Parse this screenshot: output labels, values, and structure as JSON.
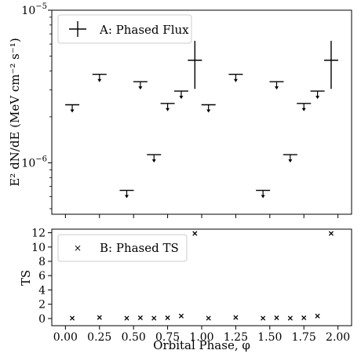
{
  "chart_data": [
    {
      "type": "scatter",
      "panel": "A",
      "ylabel": "E² dN/dE (MeV cm⁻² s⁻¹)",
      "yscale": "log",
      "ylim": [
        4.6e-07,
        1e-05
      ],
      "xlim": [
        -0.1,
        2.1
      ],
      "y_ticks": [
        {
          "value": 1e-05,
          "base": "10",
          "exp": "−5"
        },
        {
          "value": 1e-06,
          "base": "10",
          "exp": "−6"
        }
      ],
      "legend": {
        "label": "A: Phased Flux",
        "position": "top-left"
      },
      "grid": false,
      "upper_limits": [
        {
          "x": 0.05,
          "y": 2.4e-06
        },
        {
          "x": 0.25,
          "y": 3.8e-06
        },
        {
          "x": 0.45,
          "y": 6.6e-07
        },
        {
          "x": 0.55,
          "y": 3.4e-06
        },
        {
          "x": 0.65,
          "y": 1.13e-06
        },
        {
          "x": 0.75,
          "y": 2.45e-06
        },
        {
          "x": 0.85,
          "y": 2.95e-06
        },
        {
          "x": 1.05,
          "y": 2.4e-06
        },
        {
          "x": 1.25,
          "y": 3.8e-06
        },
        {
          "x": 1.45,
          "y": 6.6e-07
        },
        {
          "x": 1.55,
          "y": 3.4e-06
        },
        {
          "x": 1.65,
          "y": 1.13e-06
        },
        {
          "x": 1.75,
          "y": 2.45e-06
        },
        {
          "x": 1.85,
          "y": 2.95e-06
        }
      ],
      "detections": [
        {
          "x": 0.95,
          "y": 4.7e-06,
          "y_low": 3.05e-06,
          "y_high": 6.3e-06
        },
        {
          "x": 1.95,
          "y": 4.7e-06,
          "y_low": 3.05e-06,
          "y_high": 6.3e-06
        }
      ]
    },
    {
      "type": "scatter",
      "panel": "B",
      "ylabel": "TS",
      "xlabel": "Orbital Phase, φ",
      "xlim": [
        -0.1,
        2.1
      ],
      "ylim": [
        -1,
        12.5
      ],
      "x_ticks": [
        "0.00",
        "0.25",
        "0.50",
        "0.75",
        "1.00",
        "1.25",
        "1.50",
        "1.75",
        "2.00"
      ],
      "y_ticks": [
        "0",
        "2",
        "4",
        "6",
        "8",
        "10",
        "12"
      ],
      "legend": {
        "label": "B: Phased TS",
        "position": "top-left"
      },
      "grid": false,
      "x": [
        0.05,
        0.25,
        0.45,
        0.55,
        0.65,
        0.75,
        0.85,
        0.95,
        1.05,
        1.25,
        1.45,
        1.55,
        1.65,
        1.75,
        1.85,
        1.95
      ],
      "y": [
        0.05,
        0.15,
        0.05,
        0.1,
        0.05,
        0.1,
        0.35,
        11.9,
        0.05,
        0.15,
        0.05,
        0.1,
        0.05,
        0.1,
        0.35,
        11.9
      ]
    }
  ]
}
